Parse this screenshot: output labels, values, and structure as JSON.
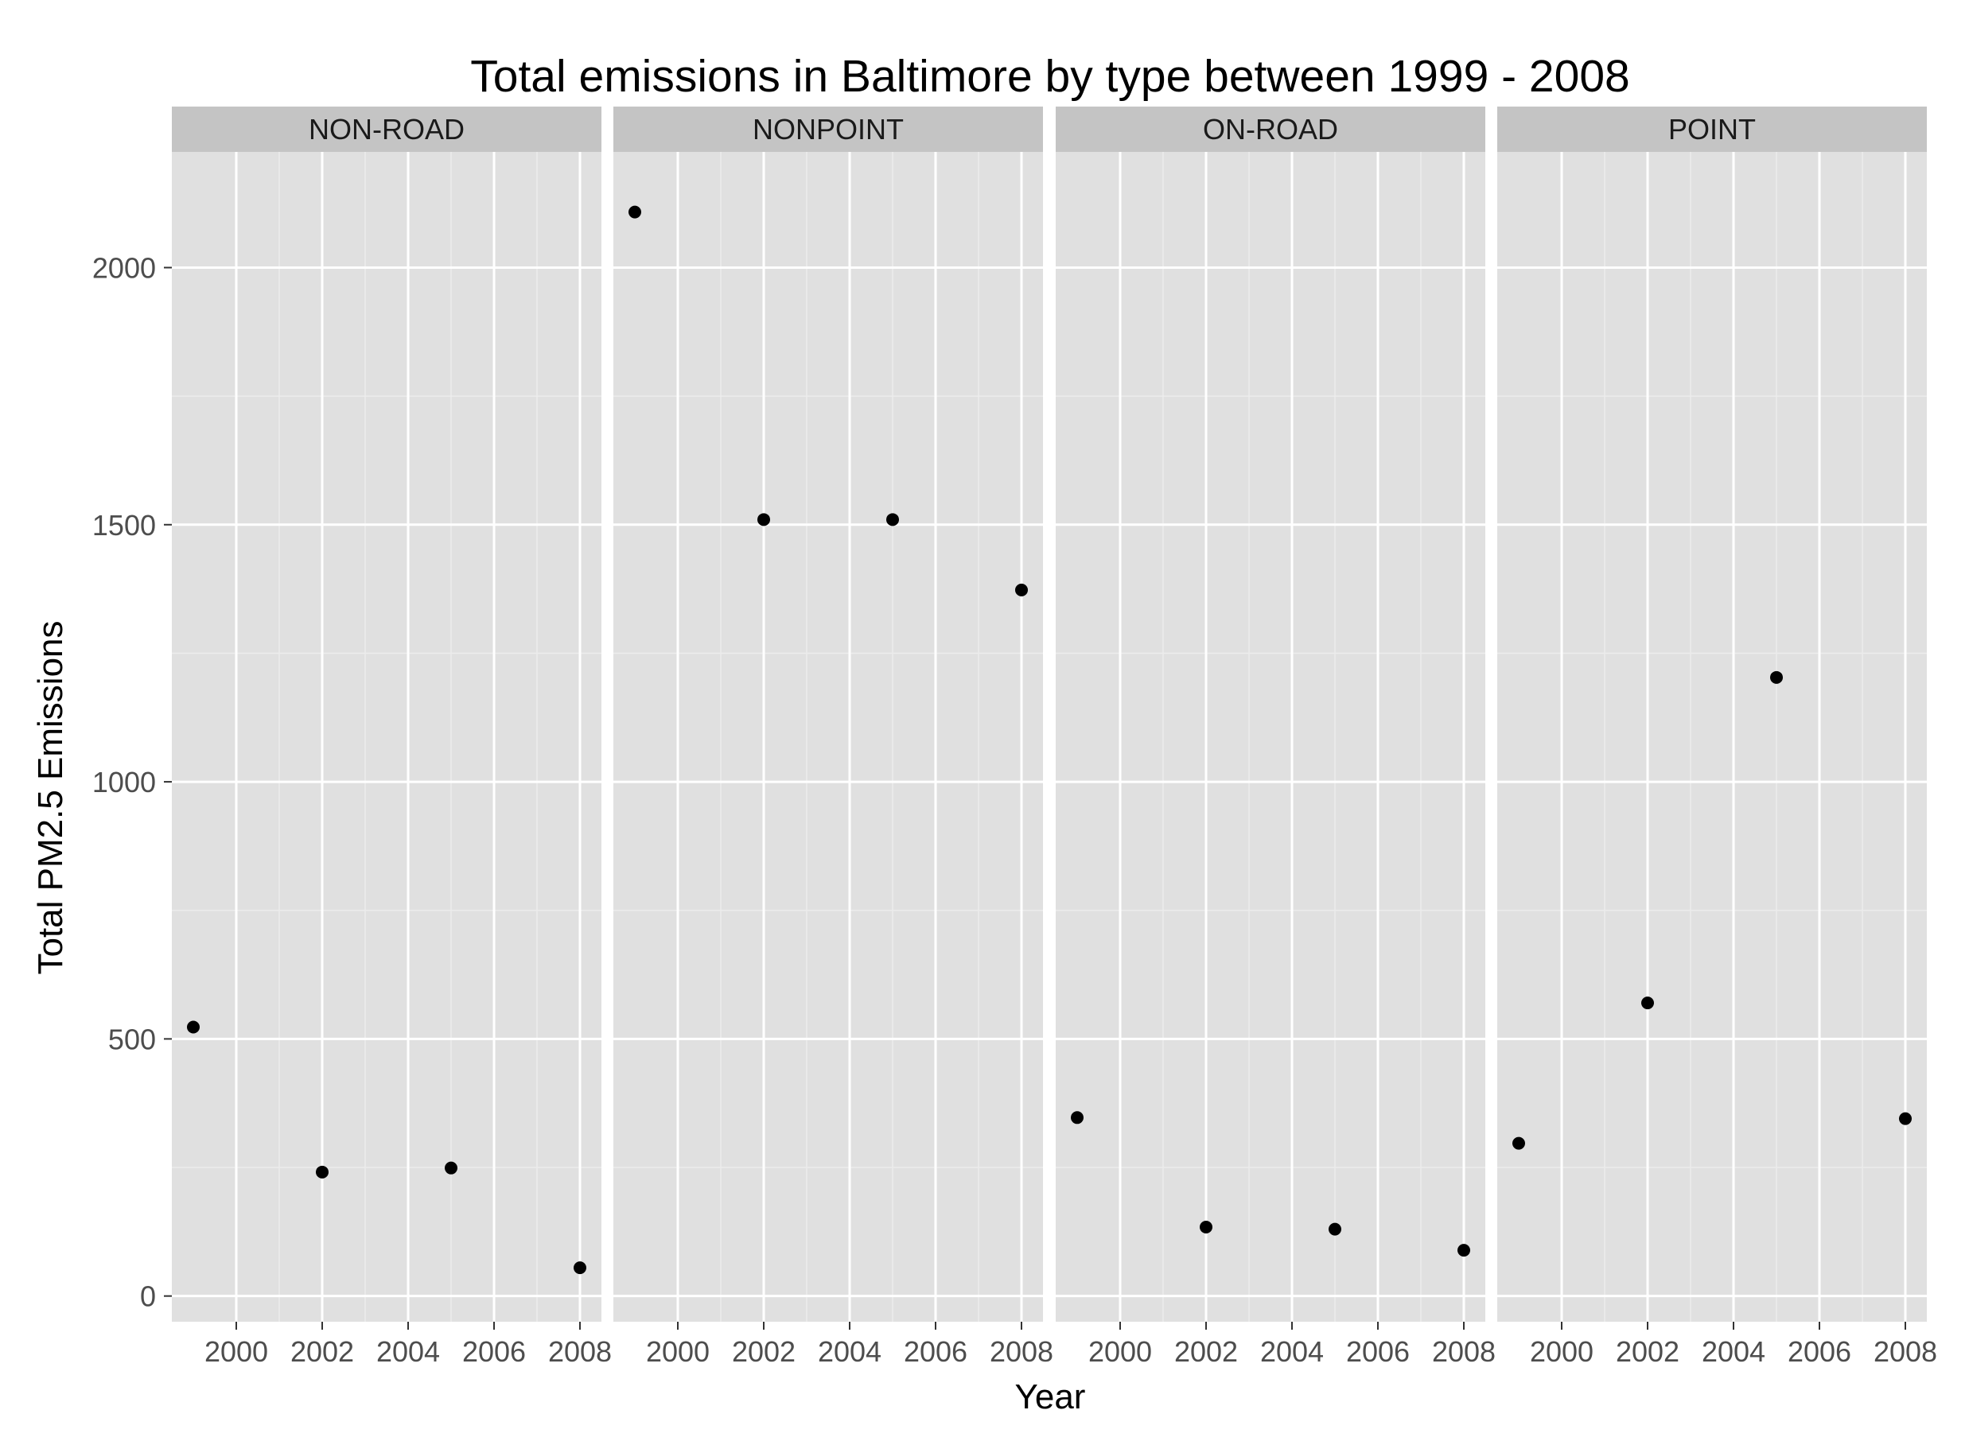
{
  "chart_data": {
    "type": "scatter",
    "title": "Total emissions in Baltimore by type between 1999 - 2008",
    "xlabel": "Year",
    "ylabel": "Total PM2.5 Emissions",
    "xlim": [
      1998.5,
      2008.5
    ],
    "ylim": [
      -50,
      2225
    ],
    "x_ticks": [
      2000,
      2002,
      2004,
      2006,
      2008
    ],
    "y_ticks": [
      0,
      500,
      1000,
      1500,
      2000
    ],
    "grid": true,
    "facet_by": "type",
    "panels": [
      {
        "name": "NON-ROAD",
        "points": [
          {
            "x": 1999,
            "y": 523
          },
          {
            "x": 2002,
            "y": 241
          },
          {
            "x": 2005,
            "y": 249
          },
          {
            "x": 2008,
            "y": 55
          }
        ]
      },
      {
        "name": "NONPOINT",
        "points": [
          {
            "x": 1999,
            "y": 2108
          },
          {
            "x": 2002,
            "y": 1510
          },
          {
            "x": 2005,
            "y": 1510
          },
          {
            "x": 2008,
            "y": 1373
          }
        ]
      },
      {
        "name": "ON-ROAD",
        "points": [
          {
            "x": 1999,
            "y": 347
          },
          {
            "x": 2002,
            "y": 134
          },
          {
            "x": 2005,
            "y": 130
          },
          {
            "x": 2008,
            "y": 89
          }
        ]
      },
      {
        "name": "POINT",
        "points": [
          {
            "x": 1999,
            "y": 297
          },
          {
            "x": 2002,
            "y": 570
          },
          {
            "x": 2005,
            "y": 1203
          },
          {
            "x": 2008,
            "y": 345
          }
        ]
      }
    ]
  },
  "colors": {
    "panel_background": "#e0e0e0",
    "strip_background": "#c4c4c4",
    "grid_major": "#ffffff",
    "grid_minor": "#ececec",
    "point": "#000000",
    "tick_text": "#4d4d4d"
  }
}
